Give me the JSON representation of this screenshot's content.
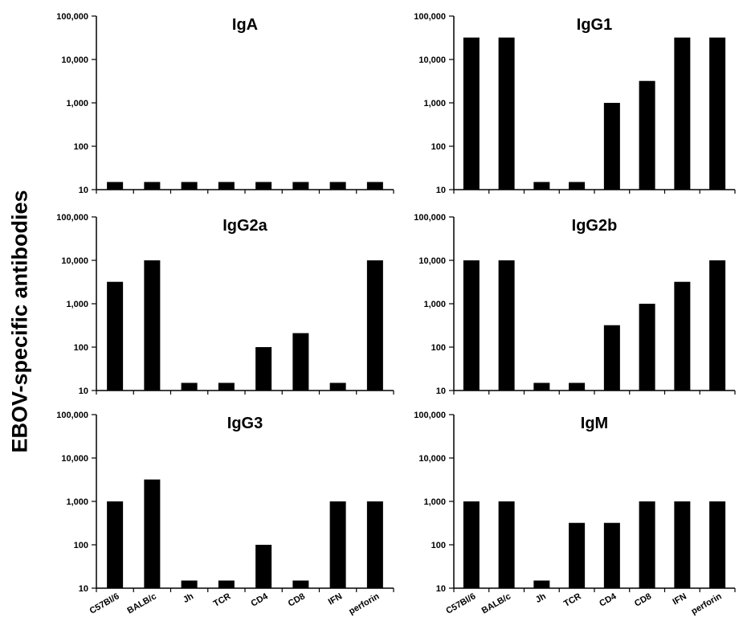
{
  "figure": {
    "ylabel": "EBOV-specific antibodies"
  },
  "chart_data": [
    {
      "type": "bar",
      "title": "IgA",
      "categories": [
        "C57Bl/6",
        "BALB/c",
        "Jh",
        "TCR",
        "CD4",
        "CD8",
        "IFN",
        "perforin"
      ],
      "values": [
        15,
        15,
        15,
        15,
        15,
        15,
        15,
        15
      ],
      "yscale": "log",
      "ylim": [
        10,
        100000
      ],
      "yticks": [
        "10",
        "100",
        "1,000",
        "10,000",
        "100,000"
      ],
      "xtick_labels_shown": false,
      "grid": false,
      "bar_color": "#000000"
    },
    {
      "type": "bar",
      "title": "IgG1",
      "categories": [
        "C57Bl/6",
        "BALB/c",
        "Jh",
        "TCR",
        "CD4",
        "CD8",
        "IFN",
        "perforin"
      ],
      "values": [
        32000,
        32000,
        15,
        15,
        1000,
        3200,
        32000,
        32000
      ],
      "yscale": "log",
      "ylim": [
        10,
        100000
      ],
      "yticks": [
        "10",
        "100",
        "1,000",
        "10,000",
        "100,000"
      ],
      "xtick_labels_shown": false,
      "grid": false,
      "bar_color": "#000000"
    },
    {
      "type": "bar",
      "title": "IgG2a",
      "categories": [
        "C57Bl/6",
        "BALB/c",
        "Jh",
        "TCR",
        "CD4",
        "CD8",
        "IFN",
        "perforin"
      ],
      "values": [
        3200,
        10000,
        15,
        15,
        100,
        210,
        15,
        10000
      ],
      "yscale": "log",
      "ylim": [
        10,
        100000
      ],
      "yticks": [
        "10",
        "100",
        "1,000",
        "10,000",
        "100,000"
      ],
      "xtick_labels_shown": false,
      "grid": false,
      "bar_color": "#000000"
    },
    {
      "type": "bar",
      "title": "IgG2b",
      "categories": [
        "C57Bl/6",
        "BALB/c",
        "Jh",
        "TCR",
        "CD4",
        "CD8",
        "IFN",
        "perforin"
      ],
      "values": [
        10000,
        10000,
        15,
        15,
        320,
        1000,
        3200,
        10000
      ],
      "yscale": "log",
      "ylim": [
        10,
        100000
      ],
      "yticks": [
        "10",
        "100",
        "1,000",
        "10,000",
        "100,000"
      ],
      "xtick_labels_shown": false,
      "grid": false,
      "bar_color": "#000000"
    },
    {
      "type": "bar",
      "title": "IgG3",
      "categories": [
        "C57Bl/6",
        "BALB/c",
        "Jh",
        "TCR",
        "CD4",
        "CD8",
        "IFN",
        "perforin"
      ],
      "values": [
        1000,
        3200,
        15,
        15,
        100,
        15,
        1000,
        1000
      ],
      "yscale": "log",
      "ylim": [
        10,
        100000
      ],
      "yticks": [
        "10",
        "100",
        "1,000",
        "10,000",
        "100,000"
      ],
      "xtick_labels_shown": true,
      "grid": false,
      "bar_color": "#000000"
    },
    {
      "type": "bar",
      "title": "IgM",
      "categories": [
        "C57Bl/6",
        "BALB/c",
        "Jh",
        "TCR",
        "CD4",
        "CD8",
        "IFN",
        "perforin"
      ],
      "values": [
        1000,
        1000,
        15,
        320,
        320,
        1000,
        1000,
        1000
      ],
      "yscale": "log",
      "ylim": [
        10,
        100000
      ],
      "yticks": [
        "10",
        "100",
        "1,000",
        "10,000",
        "100,000"
      ],
      "xtick_labels_shown": true,
      "grid": false,
      "bar_color": "#000000"
    }
  ]
}
